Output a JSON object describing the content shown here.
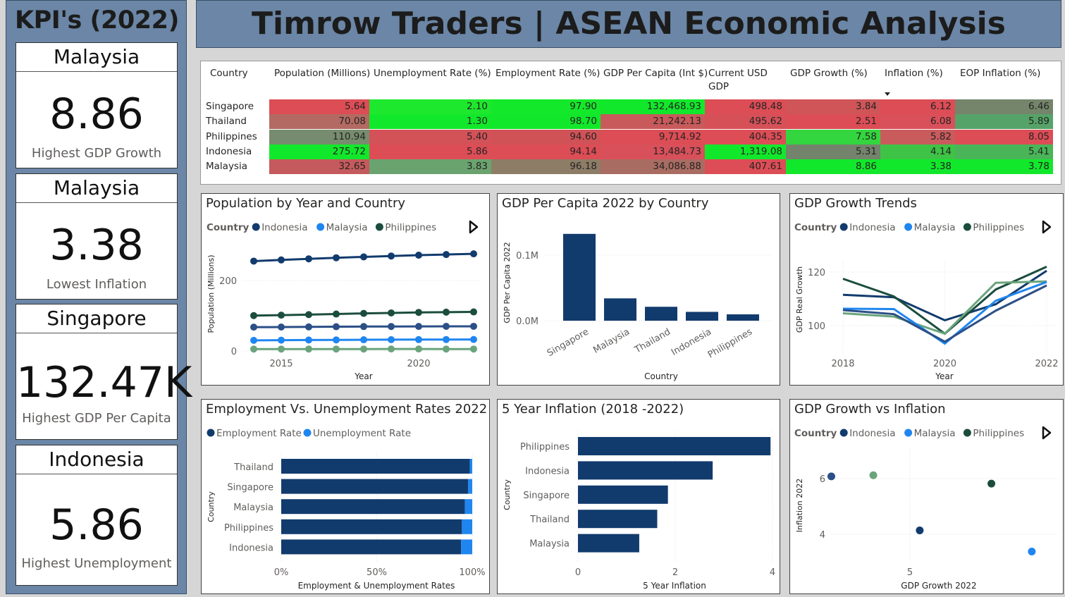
{
  "colors": {
    "indonesia": "#123b6d",
    "malaysia": "#1f86f0",
    "philippines": "#1b4d3e",
    "singapore": "#6aa47c",
    "thailand": "#2b4f87",
    "employment": "#123b6d",
    "unemployment": "#1f86f0",
    "red": "#dc4d56",
    "green": "#12e82b",
    "mid": "#73836b"
  },
  "sidebar": {
    "title": "KPI's (2022)",
    "cards": [
      {
        "country": "Malaysia",
        "value": "8.86",
        "label": "Highest GDP Growth"
      },
      {
        "country": "Malaysia",
        "value": "3.38",
        "label": "Lowest Inflation"
      },
      {
        "country": "Singapore",
        "value": "132.47K",
        "label": "Highest GDP Per Capita"
      },
      {
        "country": "Indonesia",
        "value": "5.86",
        "label": "Highest Unemployment"
      }
    ]
  },
  "banner": {
    "title": "Timrow Traders | ASEAN Economic Analysis"
  },
  "table": {
    "headers": [
      "Country",
      "Population (Millions)",
      "Unemployment Rate (%)",
      "Employment Rate (%)",
      "GDP Per Capita (Int $)",
      "Current USD GDP",
      "GDP Growth (%)",
      "Inflation (%)",
      "EOP Inflation (%)"
    ],
    "rows": [
      {
        "country": "Singapore",
        "cells": [
          "5.64",
          "2.10",
          "97.90",
          "132,468.93",
          "498.48",
          "3.84",
          "6.12",
          "6.46"
        ],
        "colors": [
          "#dc4d56",
          "#1ee82d",
          "#14e82a",
          "#12e82b",
          "#dc4d56",
          "#d05558",
          "#dc4d56",
          "#74856b"
        ]
      },
      {
        "country": "Thailand",
        "cells": [
          "70.08",
          "1.30",
          "98.70",
          "21,242.13",
          "495.62",
          "2.51",
          "6.08",
          "5.89"
        ],
        "colors": [
          "#b36a62",
          "#12e82b",
          "#12e82b",
          "#c85a5b",
          "#d65058",
          "#dc4d56",
          "#d9505a",
          "#55a368"
        ]
      },
      {
        "country": "Philippines",
        "cells": [
          "110.94",
          "5.40",
          "94.60",
          "9,714.92",
          "404.35",
          "7.58",
          "5.82",
          "8.05"
        ],
        "colors": [
          "#778c6e",
          "#d25258",
          "#d05257",
          "#dc4d56",
          "#dc4d56",
          "#33d63e",
          "#c95b5c",
          "#dc4d56"
        ]
      },
      {
        "country": "Indonesia",
        "cells": [
          "275.72",
          "5.86",
          "94.14",
          "13,484.73",
          "1,319.08",
          "5.31",
          "4.14",
          "5.41"
        ],
        "colors": [
          "#12e82b",
          "#dc4d56",
          "#dc4d56",
          "#d8505a",
          "#12e82b",
          "#74836c",
          "#3ec346",
          "#49b558"
        ]
      },
      {
        "country": "Malaysia",
        "cells": [
          "32.65",
          "3.83",
          "96.18",
          "34,086.88",
          "407.61",
          "8.86",
          "3.38",
          "3.78"
        ],
        "colors": [
          "#c45a5c",
          "#6ba36f",
          "#8d7d66",
          "#a96c62",
          "#dc4d56",
          "#12e82b",
          "#12e82b",
          "#12e82b"
        ]
      }
    ]
  },
  "population_legend": {
    "title": "Country",
    "items": [
      "Indonesia",
      "Malaysia",
      "Philippines"
    ]
  },
  "gdp_growth_legend": {
    "title": "Country",
    "items": [
      "Indonesia",
      "Malaysia",
      "Philippines"
    ]
  },
  "scatter_legend": {
    "title": "Country",
    "items": [
      "Indonesia",
      "Malaysia",
      "Philippines"
    ]
  },
  "employment_legend": {
    "items": [
      "Employment Rate",
      "Unemployment Rate"
    ]
  },
  "chart_data": [
    {
      "type": "line",
      "title": "Population by Year and Country",
      "xlabel": "Year",
      "ylabel": "Population (Millions)",
      "x": [
        2014,
        2015,
        2016,
        2017,
        2018,
        2019,
        2020,
        2021,
        2022
      ],
      "xticks": [
        2015,
        2020
      ],
      "yticks": [
        0,
        200
      ],
      "ylim": [
        0,
        280
      ],
      "series": [
        {
          "name": "Indonesia",
          "color": "#123b6d",
          "values": [
            255.1,
            258.4,
            261.6,
            264.6,
            267.1,
            269.6,
            271.9,
            273.8,
            275.7
          ]
        },
        {
          "name": "Philippines",
          "color": "#1b4d3e",
          "values": [
            100.5,
            101.7,
            103.3,
            104.9,
            106.7,
            108.1,
            109.6,
            110.2,
            110.9
          ]
        },
        {
          "values": [
            67.7,
            68.0,
            68.4,
            68.9,
            69.4,
            69.6,
            69.8,
            70.0,
            70.1
          ],
          "color": "#2b4f87"
        },
        {
          "name": "Malaysia",
          "color": "#1f86f0",
          "values": [
            30.2,
            30.7,
            31.2,
            31.6,
            31.9,
            32.3,
            32.4,
            32.6,
            32.7
          ]
        },
        {
          "values": [
            5.5,
            5.5,
            5.6,
            5.6,
            5.6,
            5.7,
            5.7,
            5.5,
            5.6
          ],
          "color": "#6aa47c"
        }
      ]
    },
    {
      "type": "bar",
      "title": "GDP Per Capita 2022 by Country",
      "xlabel": "Country",
      "ylabel": "GDP Per Capita 2022",
      "categories": [
        "Singapore",
        "Malaysia",
        "Thailand",
        "Indonesia",
        "Philippines"
      ],
      "values": [
        132468.93,
        34086.88,
        21242.13,
        13484.73,
        9714.92
      ],
      "yticks": [
        "0.0M",
        "0.1M"
      ],
      "ylim": [
        0,
        150000
      ]
    },
    {
      "type": "line",
      "title": "GDP Growth Trends",
      "xlabel": "Year",
      "ylabel": "GDP Real Growth",
      "x": [
        2018,
        2019,
        2020,
        2021,
        2022
      ],
      "xticks": [
        "2018",
        "2020",
        "2022"
      ],
      "yticks": [
        100,
        120
      ],
      "ylim": [
        92,
        126
      ],
      "series": [
        {
          "name": "Indonesia",
          "color": "#123b6d",
          "values": [
            111.5,
            110.6,
            102,
            108,
            120.5
          ]
        },
        {
          "name": "Philippines",
          "color": "#1b4d3e",
          "values": [
            117.5,
            110.9,
            97,
            113.5,
            122
          ]
        },
        {
          "values": [
            104.6,
            103.4,
            97,
            116,
            116.5
          ],
          "color": "#6aa47c"
        },
        {
          "name": "Malaysia",
          "color": "#1f86f0",
          "values": [
            106.3,
            106.2,
            93.3,
            109.3,
            116.3
          ]
        },
        {
          "values": [
            105.8,
            104.3,
            94,
            105.6,
            115
          ],
          "color": "#2b4f87"
        }
      ]
    },
    {
      "type": "bar",
      "orientation": "horizontal",
      "stacked": true,
      "title": "Employment Vs. Unemployment Rates 2022",
      "xlabel": "Employment & Unemployment Rates",
      "ylabel": "Country",
      "categories": [
        "Thailand",
        "Singapore",
        "Malaysia",
        "Philippines",
        "Indonesia"
      ],
      "series": [
        {
          "name": "Employment Rate",
          "values": [
            98.7,
            97.9,
            96.18,
            94.6,
            94.14
          ]
        },
        {
          "name": "Unemployment Rate",
          "values": [
            1.3,
            2.1,
            3.83,
            5.4,
            5.86
          ]
        }
      ],
      "xticks": [
        "0%",
        "50%",
        "100%"
      ]
    },
    {
      "type": "bar",
      "orientation": "horizontal",
      "title": "5 Year Inflation (2018 -2022)",
      "xlabel": "5 Year Inflation",
      "ylabel": "Country",
      "categories": [
        "Philippines",
        "Indonesia",
        "Singapore",
        "Thailand",
        "Malaysia"
      ],
      "values": [
        3.96,
        2.77,
        1.85,
        1.63,
        1.26
      ],
      "xticks": [
        0,
        2,
        4
      ],
      "xlim": [
        0,
        4.1
      ]
    },
    {
      "type": "scatter",
      "title": "GDP Growth vs Inflation",
      "xlabel": "GDP Growth 2022",
      "ylabel": "Inflation 2022",
      "xticks": [
        5
      ],
      "yticks": [
        4,
        6
      ],
      "xlim": [
        2.0,
        9.3
      ],
      "ylim": [
        3.0,
        6.8
      ],
      "points": [
        {
          "x": 2.51,
          "y": 6.08,
          "color": "#2b4f87"
        },
        {
          "x": 3.84,
          "y": 6.12,
          "color": "#6aa47c"
        },
        {
          "x": 7.58,
          "y": 5.82,
          "color": "#1b4d3e"
        },
        {
          "x": 5.31,
          "y": 4.14,
          "color": "#123b6d"
        },
        {
          "x": 8.86,
          "y": 3.38,
          "color": "#1f86f0"
        }
      ]
    }
  ]
}
